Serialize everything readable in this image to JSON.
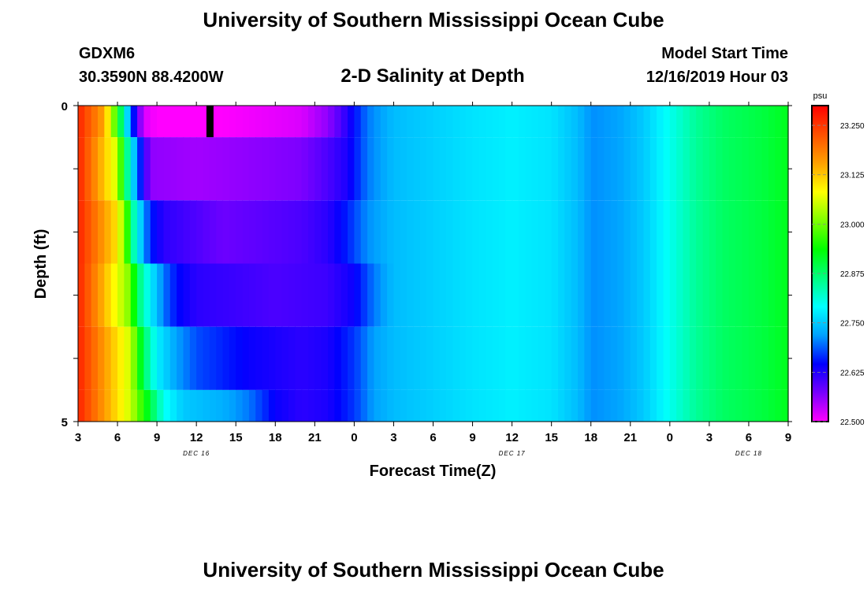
{
  "header": {
    "title": "University of Southern Mississippi Ocean Cube",
    "station_id": "GDXM6",
    "location": "30.3590N 88.4200W",
    "plot_title": "2-D Salinity at Depth",
    "model_start_label": "Model Start Time",
    "model_start_value": "12/16/2019 Hour 03"
  },
  "footer": {
    "title": "University of Southern Mississippi Ocean Cube"
  },
  "chart_data": {
    "type": "heatmap",
    "title": "2-D Salinity at Depth",
    "xlabel": "Forecast Time(Z)",
    "ylabel": "Depth (ft)",
    "x_tick_labels": [
      "3",
      "6",
      "9",
      "12",
      "15",
      "18",
      "21",
      "0",
      "3",
      "6",
      "9",
      "12",
      "15",
      "18",
      "21",
      "0",
      "3",
      "6",
      "9"
    ],
    "x_start_hours": 3,
    "x_end_hours": 57,
    "date_labels": [
      {
        "text": "DEC 16",
        "hour": 12
      },
      {
        "text": "DEC 17",
        "hour": 36
      },
      {
        "text": "DEC 18",
        "hour": 54
      }
    ],
    "y_tick_labels": [
      "0",
      "5"
    ],
    "ylim": [
      0,
      5
    ],
    "depth_levels": [
      0,
      1,
      2,
      3,
      4,
      5
    ],
    "colorbar": {
      "unit": "psu",
      "min": 22.5,
      "max": 23.3,
      "tick_values": [
        22.5,
        22.625,
        22.75,
        22.875,
        23.0,
        23.125,
        23.25
      ],
      "tick_labels": [
        "22.500",
        "22.625",
        "22.750",
        "22.875",
        "23.000",
        "23.125",
        "23.250"
      ],
      "colors": [
        "#ff00ff",
        "#7800ff",
        "#0000ff",
        "#00a0ff",
        "#00ffff",
        "#00ff80",
        "#00ff00",
        "#80ff00",
        "#ffff00",
        "#ffa000",
        "#ff5000",
        "#ff0000"
      ]
    },
    "rows": [
      {
        "depth_range": [
          0,
          0.5
        ],
        "keys": [
          [
            3,
            23.27
          ],
          [
            5,
            23.15
          ],
          [
            6,
            22.95
          ],
          [
            6.5,
            22.82
          ],
          [
            7,
            22.7
          ],
          [
            7.5,
            22.6
          ],
          [
            8,
            22.52
          ],
          [
            9,
            22.5
          ],
          [
            14,
            22.5
          ],
          [
            20,
            22.52
          ],
          [
            22,
            22.56
          ],
          [
            23,
            22.6
          ],
          [
            24,
            22.65
          ],
          [
            25,
            22.7
          ],
          [
            27,
            22.74
          ],
          [
            33,
            22.77
          ],
          [
            36,
            22.78
          ],
          [
            39,
            22.77
          ],
          [
            41,
            22.74
          ],
          [
            42,
            22.71
          ],
          [
            44,
            22.72
          ],
          [
            46,
            22.75
          ],
          [
            48,
            22.8
          ],
          [
            50,
            22.85
          ],
          [
            52,
            22.88
          ],
          [
            55,
            22.9
          ],
          [
            57,
            22.92
          ]
        ]
      },
      {
        "depth_range": [
          0.5,
          1.5
        ],
        "keys": [
          [
            3,
            23.27
          ],
          [
            6,
            23.05
          ],
          [
            6.5,
            22.9
          ],
          [
            7,
            22.8
          ],
          [
            7.5,
            22.7
          ],
          [
            8,
            22.62
          ],
          [
            8.5,
            22.56
          ],
          [
            12,
            22.55
          ],
          [
            20,
            22.57
          ],
          [
            22,
            22.6
          ],
          [
            23.5,
            22.63
          ],
          [
            25,
            22.7
          ],
          [
            27,
            22.74
          ],
          [
            33,
            22.77
          ],
          [
            36,
            22.78
          ],
          [
            39,
            22.77
          ],
          [
            41,
            22.74
          ],
          [
            42,
            22.71
          ],
          [
            44,
            22.72
          ],
          [
            46,
            22.75
          ],
          [
            48,
            22.8
          ],
          [
            50,
            22.85
          ],
          [
            52,
            22.88
          ],
          [
            55,
            22.9
          ],
          [
            57,
            22.92
          ]
        ]
      },
      {
        "depth_range": [
          1.5,
          2.5
        ],
        "keys": [
          [
            3,
            23.27
          ],
          [
            6,
            23.1
          ],
          [
            6.8,
            22.95
          ],
          [
            7.3,
            22.82
          ],
          [
            8,
            22.72
          ],
          [
            8.5,
            22.66
          ],
          [
            9.5,
            22.62
          ],
          [
            14,
            22.58
          ],
          [
            20,
            22.6
          ],
          [
            22,
            22.62
          ],
          [
            23.5,
            22.66
          ],
          [
            25,
            22.71
          ],
          [
            27,
            22.74
          ],
          [
            33,
            22.77
          ],
          [
            36,
            22.78
          ],
          [
            39,
            22.77
          ],
          [
            41,
            22.74
          ],
          [
            42,
            22.71
          ],
          [
            44,
            22.72
          ],
          [
            46,
            22.75
          ],
          [
            48,
            22.8
          ],
          [
            50,
            22.85
          ],
          [
            52,
            22.88
          ],
          [
            55,
            22.9
          ],
          [
            57,
            22.92
          ]
        ]
      },
      {
        "depth_range": [
          2.5,
          3.5
        ],
        "keys": [
          [
            3,
            23.27
          ],
          [
            7,
            23.0
          ],
          [
            7.5,
            22.88
          ],
          [
            8.5,
            22.78
          ],
          [
            9.5,
            22.7
          ],
          [
            10.5,
            22.65
          ],
          [
            12,
            22.62
          ],
          [
            18,
            22.6
          ],
          [
            22,
            22.61
          ],
          [
            24,
            22.64
          ],
          [
            25.5,
            22.7
          ],
          [
            27,
            22.74
          ],
          [
            33,
            22.77
          ],
          [
            36,
            22.78
          ],
          [
            39,
            22.77
          ],
          [
            41,
            22.74
          ],
          [
            42,
            22.71
          ],
          [
            44,
            22.72
          ],
          [
            46,
            22.75
          ],
          [
            48,
            22.8
          ],
          [
            50,
            22.85
          ],
          [
            52,
            22.88
          ],
          [
            55,
            22.9
          ],
          [
            57,
            22.92
          ]
        ]
      },
      {
        "depth_range": [
          3.5,
          4.5
        ],
        "keys": [
          [
            3,
            23.27
          ],
          [
            7,
            23.05
          ],
          [
            8,
            22.88
          ],
          [
            9,
            22.78
          ],
          [
            10.5,
            22.72
          ],
          [
            12,
            22.68
          ],
          [
            16,
            22.64
          ],
          [
            20,
            22.62
          ],
          [
            22,
            22.63
          ],
          [
            24,
            22.67
          ],
          [
            25.5,
            22.72
          ],
          [
            27,
            22.74
          ],
          [
            33,
            22.77
          ],
          [
            36,
            22.78
          ],
          [
            39,
            22.77
          ],
          [
            41,
            22.74
          ],
          [
            42,
            22.71
          ],
          [
            44,
            22.72
          ],
          [
            46,
            22.75
          ],
          [
            48,
            22.8
          ],
          [
            50,
            22.85
          ],
          [
            52,
            22.88
          ],
          [
            55,
            22.9
          ],
          [
            57,
            22.92
          ]
        ]
      },
      {
        "depth_range": [
          4.5,
          5
        ],
        "keys": [
          [
            3,
            23.27
          ],
          [
            7,
            23.05
          ],
          [
            8.5,
            22.9
          ],
          [
            9.5,
            22.8
          ],
          [
            11,
            22.75
          ],
          [
            14,
            22.73
          ],
          [
            16,
            22.7
          ],
          [
            18,
            22.64
          ],
          [
            20,
            22.62
          ],
          [
            22,
            22.63
          ],
          [
            24,
            22.67
          ],
          [
            25.5,
            22.72
          ],
          [
            27,
            22.74
          ],
          [
            33,
            22.77
          ],
          [
            36,
            22.78
          ],
          [
            39,
            22.77
          ],
          [
            41,
            22.74
          ],
          [
            42,
            22.71
          ],
          [
            44,
            22.72
          ],
          [
            46,
            22.75
          ],
          [
            48,
            22.8
          ],
          [
            50,
            22.85
          ],
          [
            52,
            22.88
          ],
          [
            55,
            22.9
          ],
          [
            57,
            22.92
          ]
        ]
      }
    ],
    "missing_marker": {
      "hour": 13,
      "depth_range": [
        0,
        0.5
      ]
    }
  }
}
